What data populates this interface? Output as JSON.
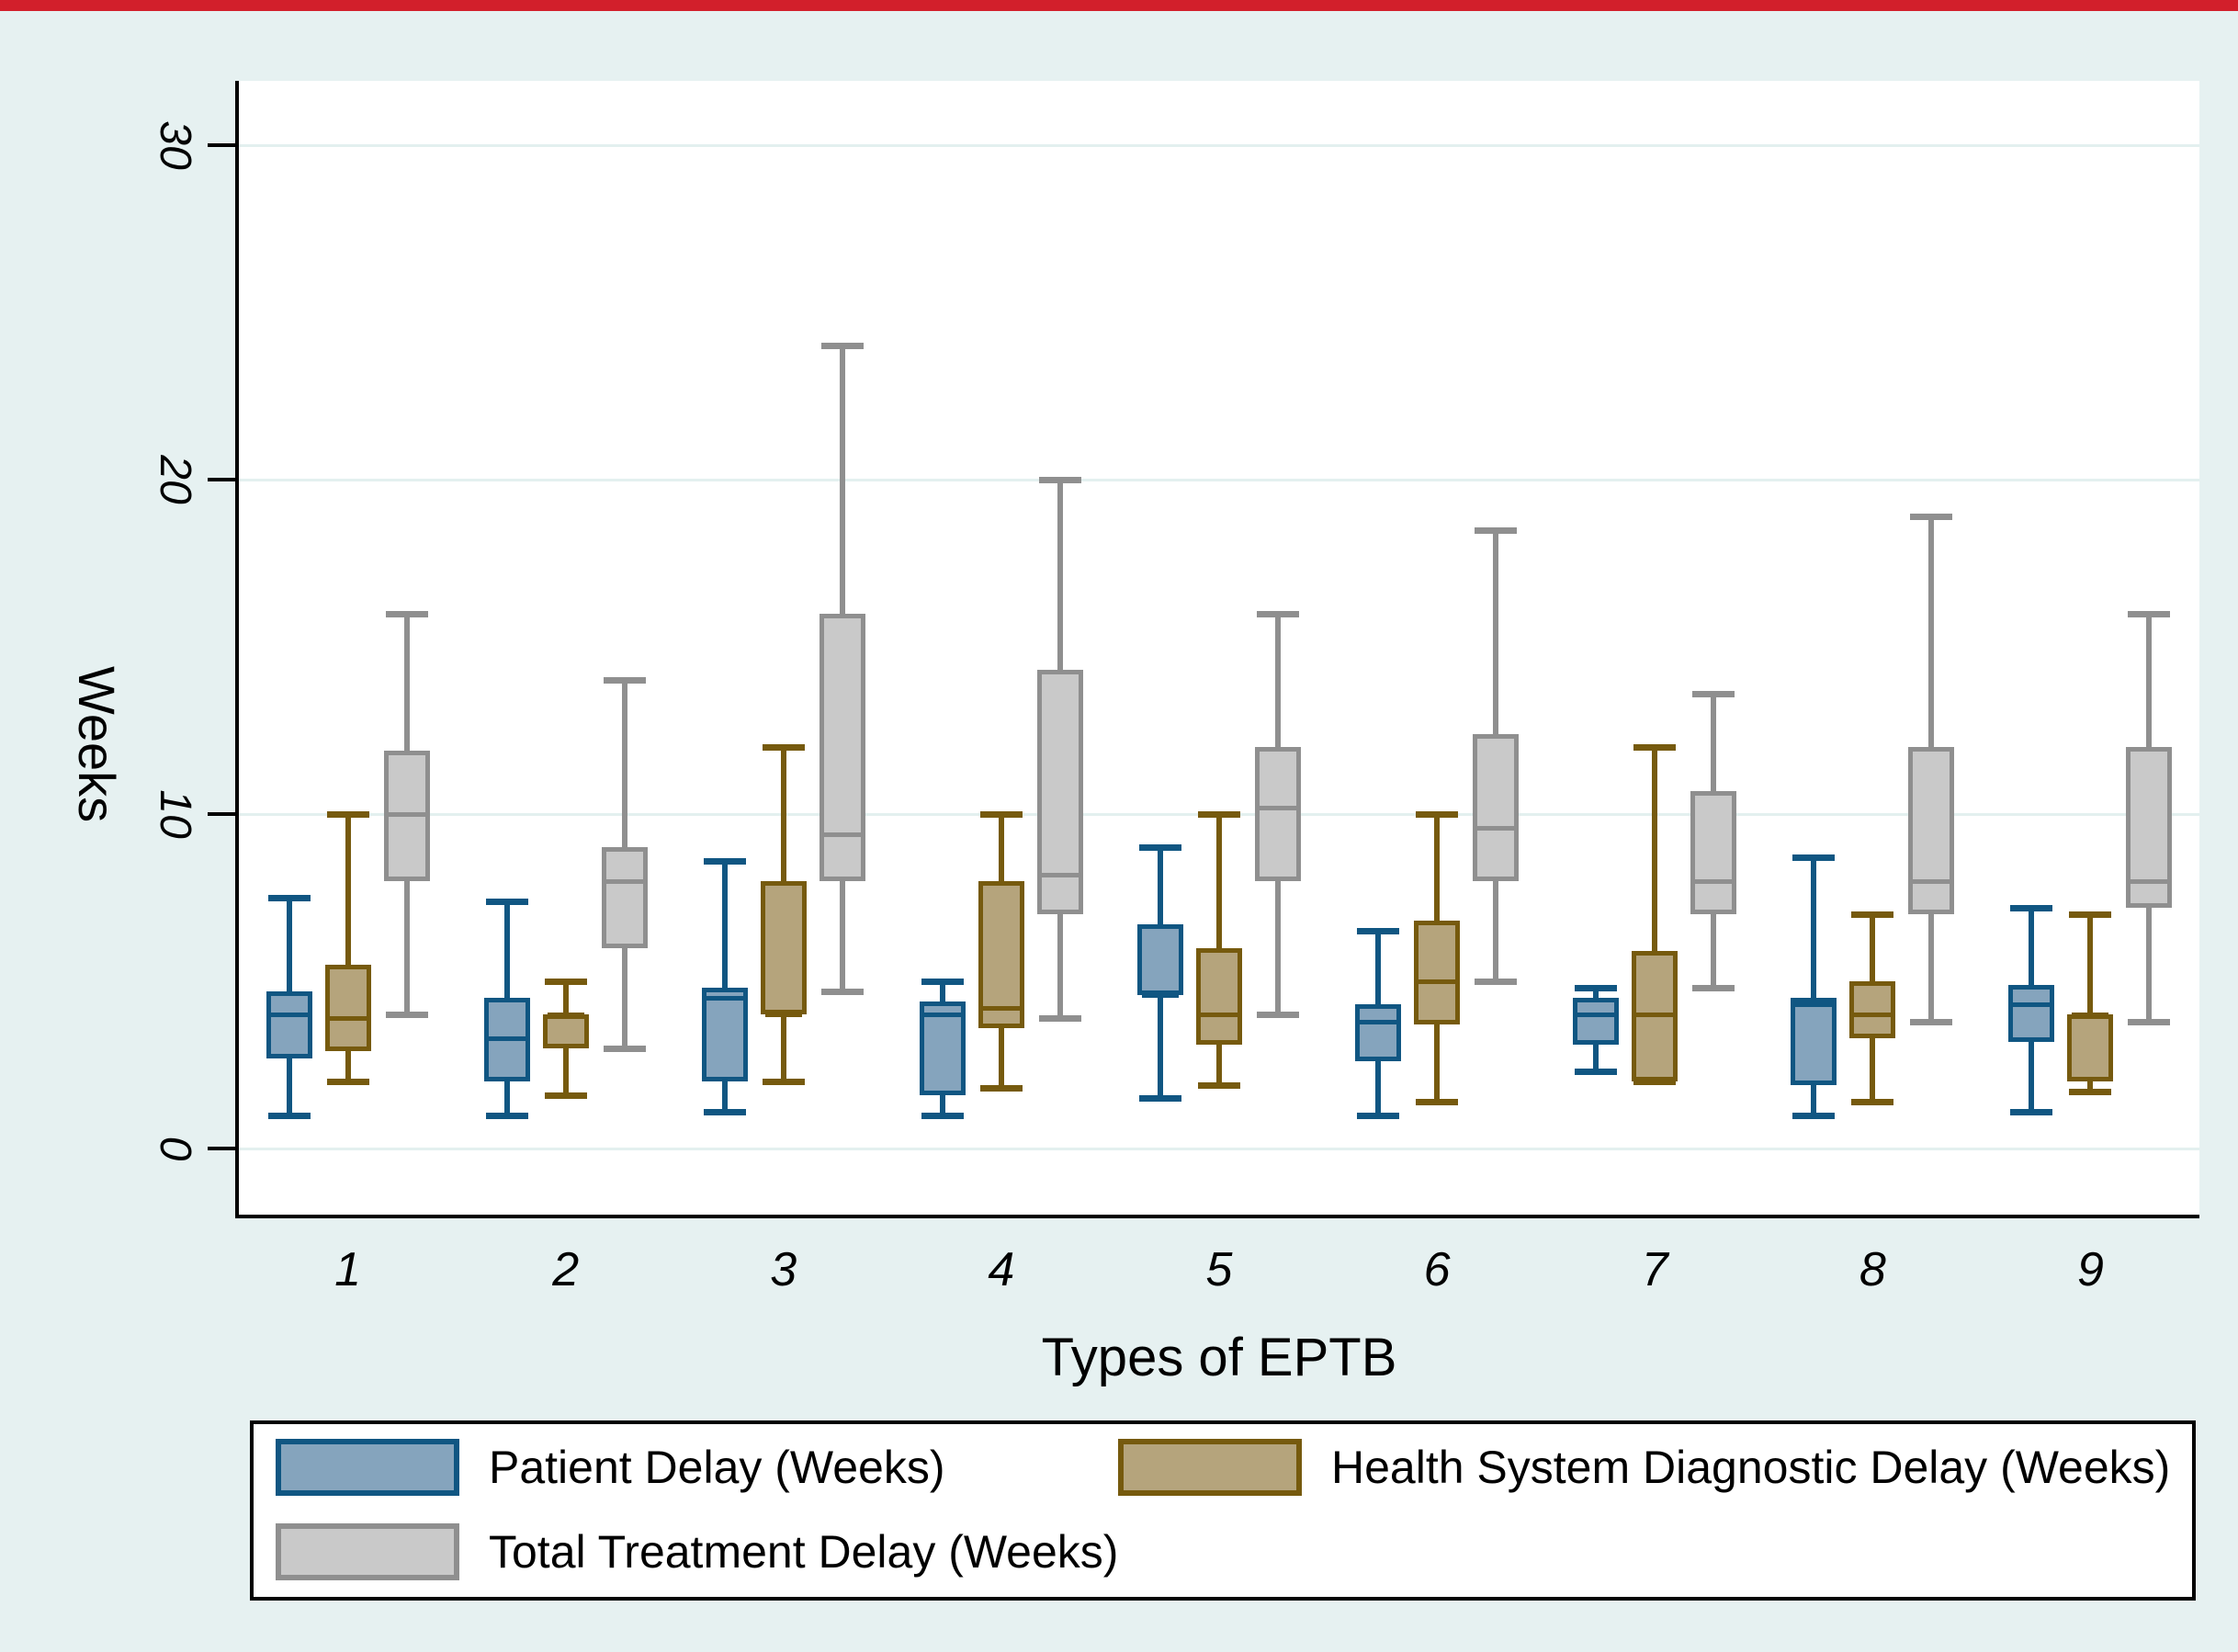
{
  "page": {
    "background": "#e6f1f1",
    "top_strip_color": "#d21f2b"
  },
  "chart_data": {
    "type": "box",
    "title": "",
    "xlabel": "Types of EPTB",
    "ylabel": "Weeks",
    "categories": [
      "1",
      "2",
      "3",
      "4",
      "5",
      "6",
      "7",
      "8",
      "9"
    ],
    "yticks": [
      0,
      10,
      20,
      30
    ],
    "ylim": [
      -2,
      32
    ],
    "grid": true,
    "legend_position": "bottom",
    "stats_order": [
      "min",
      "q1",
      "median",
      "q3",
      "max"
    ],
    "series": [
      {
        "name": "Patient Delay (Weeks)",
        "fill": "#85a4bd",
        "border": "#105682",
        "stats": [
          [
            1,
            2.7,
            4,
            4.7,
            7.5
          ],
          [
            1,
            2,
            3.3,
            4.5,
            7.4
          ],
          [
            1.1,
            2,
            4.5,
            4.8,
            8.6
          ],
          [
            1,
            1.6,
            4,
            4.4,
            5
          ],
          [
            1.5,
            4.6,
            4.6,
            6.7,
            9
          ],
          [
            1,
            2.6,
            3.8,
            4.3,
            6.5
          ],
          [
            2.3,
            3.1,
            4,
            4.5,
            4.8
          ],
          [
            1,
            1.9,
            4.3,
            4.5,
            8.7
          ],
          [
            1.1,
            3.2,
            4.3,
            4.9,
            7.2
          ]
        ]
      },
      {
        "name": "Health System Diagnostic Delay (Weeks)",
        "fill": "#b5a47c",
        "border": "#765a0e",
        "stats": [
          [
            2,
            2.9,
            3.9,
            5.5,
            10
          ],
          [
            1.6,
            3,
            4,
            4,
            5
          ],
          [
            2,
            4,
            4,
            8,
            12
          ],
          [
            1.8,
            3.6,
            4.2,
            8,
            10
          ],
          [
            1.9,
            3.1,
            4,
            6,
            10
          ],
          [
            1.4,
            3.7,
            5,
            6.8,
            10
          ],
          [
            2,
            2,
            4,
            5.9,
            12
          ],
          [
            1.4,
            3.3,
            4,
            5,
            7
          ],
          [
            1.7,
            2,
            4,
            4,
            7
          ]
        ]
      },
      {
        "name": "Total Treatment Delay (Weeks)",
        "fill": "#c9c9c9",
        "border": "#8f8f8f",
        "stats": [
          [
            4,
            8,
            10,
            11.9,
            16
          ],
          [
            3,
            6,
            8,
            9,
            14
          ],
          [
            4.7,
            8,
            9.4,
            16,
            24
          ],
          [
            3.9,
            7,
            8.2,
            14.3,
            20
          ],
          [
            4,
            8,
            10.2,
            12,
            16
          ],
          [
            5,
            8,
            9.6,
            12.4,
            18.5
          ],
          [
            4.8,
            7,
            8,
            10.7,
            13.6
          ],
          [
            3.8,
            7,
            8,
            12,
            18.9
          ],
          [
            3.8,
            7.2,
            8,
            12,
            16
          ]
        ]
      }
    ]
  },
  "legend": {
    "items": [
      {
        "label": "Patient Delay (Weeks)"
      },
      {
        "label": "Health System Diagnostic Delay (Weeks)"
      },
      {
        "label": "Total Treatment Delay (Weeks)"
      }
    ]
  }
}
